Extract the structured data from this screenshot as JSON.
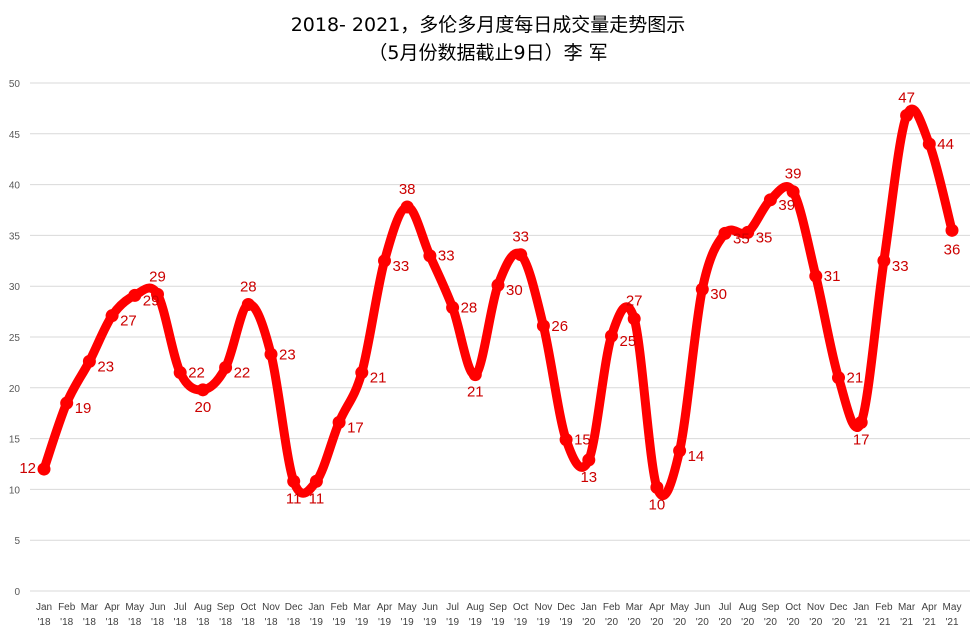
{
  "chart_data": {
    "type": "line",
    "title": "2018- 2021，多伦多月度每日成交量走势图示",
    "subtitle": "（5月份数据截止9日）李 军",
    "xlabel": "",
    "ylabel": "",
    "ylim": [
      0,
      50
    ],
    "yticks": [
      0,
      5,
      10,
      15,
      20,
      25,
      30,
      35,
      40,
      45,
      50
    ],
    "grid": true,
    "legend": "none",
    "categories": [
      [
        "Jan",
        "'18"
      ],
      [
        "Feb",
        "'18"
      ],
      [
        "Mar",
        "'18"
      ],
      [
        "Apr",
        "'18"
      ],
      [
        "May",
        "'18"
      ],
      [
        "Jun",
        "'18"
      ],
      [
        "Jul",
        "'18"
      ],
      [
        "Aug",
        "'18"
      ],
      [
        "Sep",
        "'18"
      ],
      [
        "Oct",
        "'18"
      ],
      [
        "Nov",
        "'18"
      ],
      [
        "Dec",
        "'18"
      ],
      [
        "Jan",
        "'19"
      ],
      [
        "Feb",
        "'19"
      ],
      [
        "Mar",
        "'19"
      ],
      [
        "Apr",
        "'19"
      ],
      [
        "May",
        "'19"
      ],
      [
        "Jun",
        "'19"
      ],
      [
        "Jul",
        "'19"
      ],
      [
        "Aug",
        "'19"
      ],
      [
        "Sep",
        "'19"
      ],
      [
        "Oct",
        "'19"
      ],
      [
        "Nov",
        "'19"
      ],
      [
        "Dec",
        "'19"
      ],
      [
        "Jan",
        "'20"
      ],
      [
        "Feb",
        "'20"
      ],
      [
        "Mar",
        "'20"
      ],
      [
        "Apr",
        "'20"
      ],
      [
        "May",
        "'20"
      ],
      [
        "Jun",
        "'20"
      ],
      [
        "Jul",
        "'20"
      ],
      [
        "Aug",
        "'20"
      ],
      [
        "Sep",
        "'20"
      ],
      [
        "Oct",
        "'20"
      ],
      [
        "Nov",
        "'20"
      ],
      [
        "Dec",
        "'20"
      ],
      [
        "Jan",
        "'21"
      ],
      [
        "Feb",
        "'21"
      ],
      [
        "Mar",
        "'21"
      ],
      [
        "Apr",
        "'21"
      ],
      [
        "May",
        "'21"
      ]
    ],
    "values": [
      12.0,
      18.5,
      22.6,
      27.1,
      29.1,
      29.2,
      21.5,
      19.8,
      22.0,
      28.2,
      23.3,
      10.8,
      10.8,
      16.6,
      21.5,
      32.5,
      37.8,
      33.0,
      27.9,
      21.3,
      30.1,
      33.1,
      26.1,
      14.9,
      12.9,
      25.1,
      26.8,
      10.2,
      13.8,
      29.7,
      35.2,
      35.3,
      38.5,
      39.3,
      31.0,
      21.0,
      16.6,
      32.5,
      46.8,
      44.0,
      35.5
    ],
    "labels": [
      "12",
      "19",
      "23",
      "27",
      "29",
      "29",
      "22",
      "20",
      "22",
      "28",
      "23",
      "11",
      "11",
      "17",
      "21",
      "33",
      "38",
      "33",
      "28",
      "21",
      "30",
      "33",
      "26",
      "15",
      "13",
      "25",
      "27",
      "10",
      "14",
      "30",
      "35",
      "35",
      "39",
      "39",
      "31",
      "21",
      "17",
      "33",
      "47",
      "44",
      "36"
    ],
    "colors": {
      "series": "#ff0000",
      "label": "#cc0000",
      "grid": "#d9d9d9",
      "axis_text": "#595959"
    }
  }
}
